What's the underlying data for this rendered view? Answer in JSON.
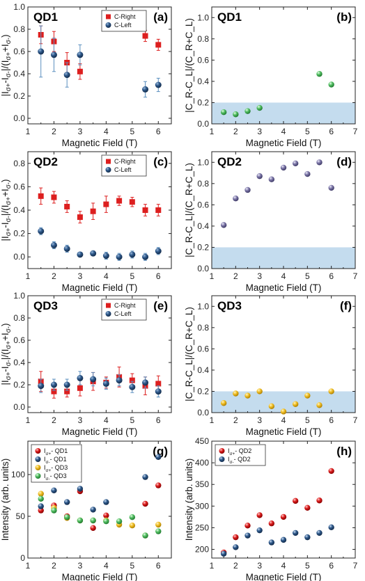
{
  "colors": {
    "c_right": "#dd1f1f",
    "c_left": "#2f5a8c",
    "ratio_qd1": "#55c065",
    "ratio_qd2": "#7f79aa",
    "ratio_qd3": "#f2c12a",
    "band": "#c4dcee",
    "int_qd1_plus": "#dd1f1f",
    "int_qd1_minus": "#2f5a8c",
    "int_qd3_plus": "#f2c12a",
    "int_qd3_minus": "#55c065"
  },
  "chart_data": [
    {
      "id": "a",
      "type": "scatter",
      "panel_label": "(a)",
      "qd_label": "QD1",
      "xlabel": "Magnetic Field (T)",
      "ylabel": "|I_{σ+}-I_{σ-}|/(I_{σ+}+I_{σ-})",
      "xlim": [
        1,
        6.5
      ],
      "ylim": [
        -0.05,
        1.0
      ],
      "xticks": [
        1,
        2,
        3,
        4,
        5,
        6
      ],
      "yticks": [
        0.0,
        0.2,
        0.4,
        0.6,
        0.8,
        1.0
      ],
      "legend": "top-right",
      "series": [
        {
          "name": "C-Right",
          "marker": "square",
          "color": "c_right",
          "x": [
            1.5,
            2.0,
            2.5,
            3.0,
            5.5,
            6.0
          ],
          "y": [
            0.75,
            0.69,
            0.5,
            0.42,
            0.74,
            0.66
          ],
          "err": [
            0.08,
            0.09,
            0.09,
            0.07,
            0.05,
            0.05
          ]
        },
        {
          "name": "C-Left",
          "marker": "circle",
          "color": "c_left",
          "x": [
            1.5,
            2.0,
            2.5,
            3.0,
            5.5,
            6.0
          ],
          "y": [
            0.6,
            0.57,
            0.39,
            0.57,
            0.26,
            0.3
          ],
          "err": [
            0.23,
            0.15,
            0.11,
            0.09,
            0.07,
            0.06
          ]
        }
      ]
    },
    {
      "id": "b",
      "type": "scatter",
      "panel_label": "(b)",
      "qd_label": "QD1",
      "xlabel": "Magnetic Field (T)",
      "ylabel": "|C_R-C_L|/(C_R+C_L)",
      "xlim": [
        1,
        7
      ],
      "ylim": [
        0,
        1.1
      ],
      "xticks": [
        1,
        2,
        3,
        4,
        5,
        6,
        7
      ],
      "yticks": [
        0.0,
        0.2,
        0.4,
        0.6,
        0.8,
        1.0
      ],
      "band": [
        0,
        0.2
      ],
      "series": [
        {
          "name": "",
          "marker": "ball",
          "color": "ratio_qd1",
          "x": [
            1.5,
            2.0,
            2.5,
            3.0,
            5.5,
            6.0
          ],
          "y": [
            0.11,
            0.09,
            0.12,
            0.15,
            0.47,
            0.37
          ]
        }
      ]
    },
    {
      "id": "c",
      "type": "scatter",
      "panel_label": "(c)",
      "qd_label": "QD2",
      "xlabel": "Magnetic Field (T)",
      "ylabel": "|I_{σ+}-I_{σ-}|/(I_{σ+}+I_{σ-})",
      "xlim": [
        1,
        6.5
      ],
      "ylim": [
        -0.1,
        0.9
      ],
      "xticks": [
        1,
        2,
        3,
        4,
        5,
        6
      ],
      "yticks": [
        0.0,
        0.2,
        0.4,
        0.6,
        0.8
      ],
      "legend": "top-right",
      "series": [
        {
          "name": "C-Right",
          "marker": "square",
          "color": "c_right",
          "x": [
            1.5,
            2.0,
            2.5,
            3.0,
            3.5,
            4.0,
            4.5,
            5.0,
            5.5,
            6.0
          ],
          "y": [
            0.52,
            0.51,
            0.43,
            0.34,
            0.39,
            0.45,
            0.48,
            0.47,
            0.4,
            0.4
          ],
          "err": [
            0.07,
            0.05,
            0.05,
            0.05,
            0.07,
            0.07,
            0.04,
            0.04,
            0.05,
            0.05
          ]
        },
        {
          "name": "C-Left",
          "marker": "circle",
          "color": "c_left",
          "x": [
            1.5,
            2.0,
            2.5,
            3.0,
            3.5,
            4.0,
            4.5,
            5.0,
            5.5,
            6.0
          ],
          "y": [
            0.22,
            0.1,
            0.07,
            0.02,
            0.03,
            0.01,
            0.0,
            0.02,
            0.0,
            0.05
          ],
          "err": [
            0.03,
            0.03,
            0.03,
            0.02,
            0.02,
            0.03,
            0.03,
            0.03,
            0.03,
            0.03
          ]
        }
      ]
    },
    {
      "id": "d",
      "type": "scatter",
      "panel_label": "(d)",
      "qd_label": "QD2",
      "xlabel": "Magnetic Field (T)",
      "ylabel": "|C_R-C_L|/(C_R+C_L)",
      "xlim": [
        1,
        7
      ],
      "ylim": [
        0,
        1.1
      ],
      "xticks": [
        1,
        2,
        3,
        4,
        5,
        6,
        7
      ],
      "yticks": [
        0.0,
        0.2,
        0.4,
        0.6,
        0.8,
        1.0
      ],
      "band": [
        0,
        0.2
      ],
      "series": [
        {
          "name": "",
          "marker": "ball",
          "color": "ratio_qd2",
          "x": [
            1.5,
            2.0,
            2.5,
            3.0,
            3.5,
            4.0,
            4.5,
            5.0,
            5.5,
            6.0
          ],
          "y": [
            0.41,
            0.66,
            0.74,
            0.87,
            0.84,
            0.95,
            0.99,
            0.89,
            1.0,
            0.76
          ]
        }
      ]
    },
    {
      "id": "e",
      "type": "scatter",
      "panel_label": "(e)",
      "qd_label": "QD3",
      "xlabel": "Magnetic Field (T)",
      "ylabel": "|I_{σ+}-I_{σ-}|/(I_{σ+}+I_{σ-})",
      "xlim": [
        1,
        6.5
      ],
      "ylim": [
        -0.05,
        1.0
      ],
      "xticks": [
        1,
        2,
        3,
        4,
        5,
        6
      ],
      "yticks": [
        0.0,
        0.2,
        0.4,
        0.6,
        0.8,
        1.0
      ],
      "legend": "top-right",
      "series": [
        {
          "name": "C-Right",
          "marker": "square",
          "color": "c_right",
          "x": [
            1.5,
            2.0,
            2.5,
            3.0,
            3.5,
            4.0,
            4.5,
            5.0,
            5.5,
            6.0
          ],
          "y": [
            0.23,
            0.14,
            0.14,
            0.17,
            0.23,
            0.22,
            0.27,
            0.24,
            0.19,
            0.21
          ],
          "err": [
            0.09,
            0.06,
            0.05,
            0.07,
            0.08,
            0.05,
            0.09,
            0.06,
            0.08,
            0.07
          ]
        },
        {
          "name": "C-Left",
          "marker": "circle",
          "color": "c_left",
          "x": [
            1.5,
            2.0,
            2.5,
            3.0,
            3.5,
            4.0,
            4.5,
            5.0,
            5.5,
            6.0
          ],
          "y": [
            0.19,
            0.2,
            0.2,
            0.26,
            0.25,
            0.21,
            0.24,
            0.18,
            0.22,
            0.14
          ],
          "err": [
            0.06,
            0.05,
            0.05,
            0.06,
            0.06,
            0.05,
            0.05,
            0.05,
            0.05,
            0.05
          ]
        }
      ]
    },
    {
      "id": "f",
      "type": "scatter",
      "panel_label": "(f)",
      "qd_label": "QD3",
      "xlabel": "Magnetic Field (T)",
      "ylabel": "|C_R-C_L|/(C_R+C_L)",
      "xlim": [
        1,
        7
      ],
      "ylim": [
        0,
        1.1
      ],
      "xticks": [
        1,
        2,
        3,
        4,
        5,
        6,
        7
      ],
      "yticks": [
        0.0,
        0.2,
        0.4,
        0.6,
        0.8,
        1.0
      ],
      "band": [
        0,
        0.2
      ],
      "series": [
        {
          "name": "",
          "marker": "ball",
          "color": "ratio_qd3",
          "x": [
            1.5,
            2.0,
            2.5,
            3.0,
            3.5,
            4.0,
            4.5,
            5.0,
            5.5,
            6.0
          ],
          "y": [
            0.09,
            0.18,
            0.16,
            0.2,
            0.06,
            0.01,
            0.08,
            0.16,
            0.07,
            0.2
          ]
        }
      ]
    },
    {
      "id": "g",
      "type": "scatter",
      "panel_label": "(g)",
      "qd_label": "",
      "xlabel": "Magnetic Field (T)",
      "ylabel": "Intensity (arb. units)",
      "xlim": [
        1,
        6.5
      ],
      "ylim": [
        0,
        140
      ],
      "xticks": [
        1,
        2,
        3,
        4,
        5,
        6
      ],
      "yticks": [
        0,
        50,
        100
      ],
      "legend": "top-left",
      "series": [
        {
          "name": "I_{σ+}- QD1",
          "marker": "ball",
          "color": "int_qd1_plus",
          "x": [
            1.5,
            2.0,
            2.5,
            3.0,
            3.5,
            4.0,
            5.5,
            6.0
          ],
          "y": [
            57,
            63,
            50,
            80,
            36,
            51,
            65,
            87
          ]
        },
        {
          "name": "I_{σ-}- QD1",
          "marker": "ball",
          "color": "int_qd1_minus",
          "x": [
            1.5,
            2.0,
            2.5,
            3.0,
            3.5,
            4.0,
            5.5,
            6.0
          ],
          "y": [
            62,
            81,
            67,
            83,
            58,
            67,
            97,
            121
          ]
        },
        {
          "name": "I_{σ+}- QD3",
          "marker": "ball",
          "color": "int_qd3_plus",
          "x": [
            1.5,
            2.0,
            2.5,
            3.0,
            3.5,
            4.0,
            4.5,
            5.0,
            5.5,
            6.0
          ],
          "y": [
            77,
            60,
            48,
            45,
            45,
            45,
            40,
            39,
            27,
            40
          ]
        },
        {
          "name": "I_{σ-}- QD3",
          "marker": "ball",
          "color": "int_qd3_minus",
          "x": [
            1.5,
            2.0,
            2.5,
            3.0,
            3.5,
            4.0,
            4.5,
            5.0,
            5.5,
            6.0
          ],
          "y": [
            71,
            57,
            49,
            45,
            45,
            44,
            44,
            49,
            27,
            32
          ]
        }
      ]
    },
    {
      "id": "h",
      "type": "scatter",
      "panel_label": "(h)",
      "qd_label": "",
      "xlabel": "Magnetic Field (T)",
      "ylabel": "Intensity (arb. units)",
      "xlim": [
        1,
        7
      ],
      "ylim": [
        180,
        450
      ],
      "xticks": [
        1,
        2,
        3,
        4,
        5,
        6,
        7
      ],
      "yticks": [
        200,
        250,
        300,
        350,
        400,
        450
      ],
      "legend": "top-left",
      "series": [
        {
          "name": "I_{σ+}- QD2",
          "marker": "ball",
          "color": "int_qd1_plus",
          "x": [
            1.5,
            2.0,
            2.5,
            3.0,
            3.5,
            4.0,
            4.5,
            5.0,
            5.5,
            6.0
          ],
          "y": [
            193,
            228,
            255,
            279,
            260,
            275,
            312,
            296,
            313,
            381
          ]
        },
        {
          "name": "I_{σ-}- QD2",
          "marker": "ball",
          "color": "int_qd1_minus",
          "x": [
            1.5,
            2.0,
            2.5,
            3.0,
            3.5,
            4.0,
            4.5,
            5.0,
            5.5,
            6.0
          ],
          "y": [
            190,
            205,
            232,
            244,
            216,
            222,
            238,
            228,
            238,
            251
          ]
        }
      ]
    }
  ]
}
